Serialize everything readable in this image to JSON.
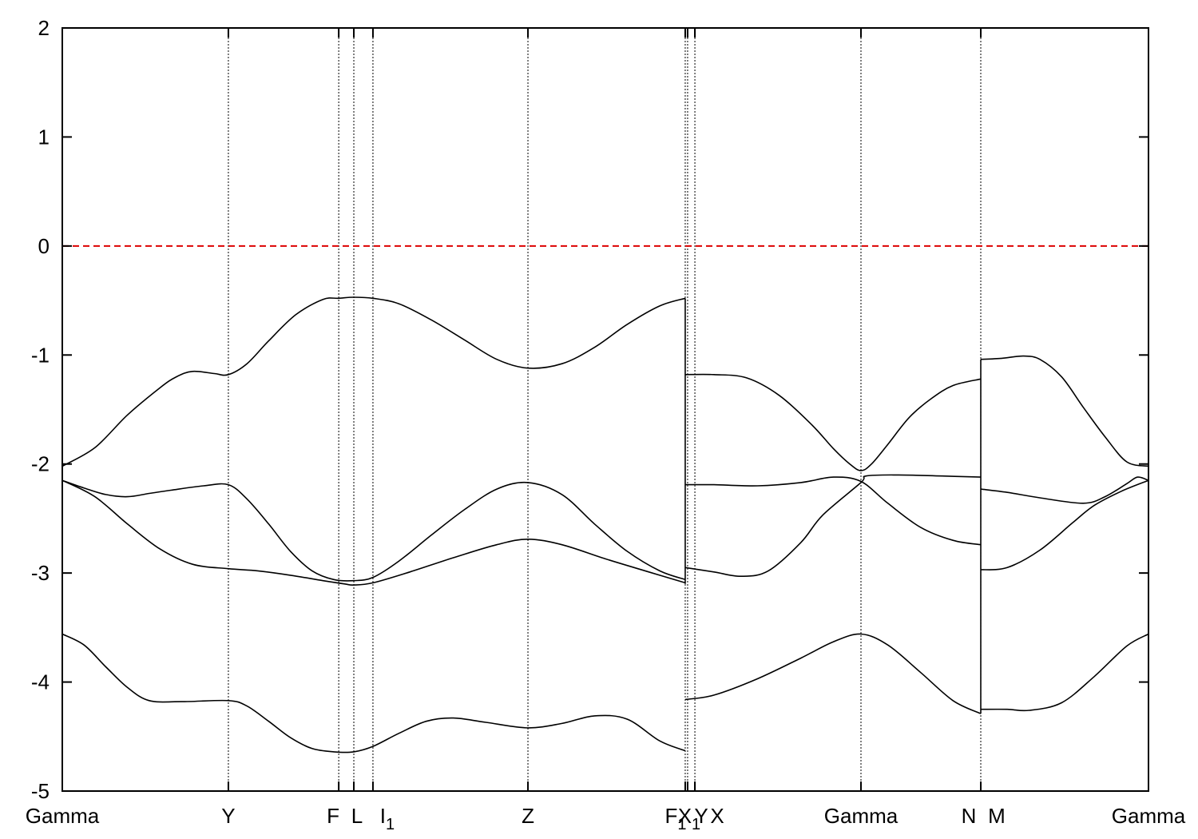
{
  "chart_data": {
    "type": "line",
    "title": "",
    "xlabel": "",
    "ylabel": "",
    "ylim": [
      -5,
      2
    ],
    "xlim": [
      0,
      1
    ],
    "grid": false,
    "legend": "none",
    "yticks": [
      2,
      1,
      0,
      -1,
      -2,
      -3,
      -4,
      -5
    ],
    "ytick_labels": [
      "2",
      "1",
      "0",
      "-1",
      "-2",
      "-3",
      "-4",
      "-5"
    ],
    "kpoints": [
      {
        "x": 0.0,
        "label": "Gamma"
      },
      {
        "x": 0.1529,
        "label": "Y"
      },
      {
        "x": 0.2545,
        "label": "F"
      },
      {
        "x": 0.2684,
        "label": "L"
      },
      {
        "x": 0.286,
        "label": "I",
        "sub": "1"
      },
      {
        "x": 0.4287,
        "label": "Z"
      },
      {
        "x": 0.5735,
        "label": "F",
        "sub": "1"
      },
      {
        "x": 0.5757,
        "label": "X",
        "sub": "1"
      },
      {
        "x": 0.5824,
        "label": "Y"
      },
      {
        "x": 0.5824,
        "label": "X"
      },
      {
        "x": 0.7353,
        "label": "Gamma"
      },
      {
        "x": 0.8456,
        "label": "N"
      },
      {
        "x": 0.8456,
        "label": "M"
      },
      {
        "x": 1.0,
        "label": "Gamma"
      }
    ],
    "kpoint_lines_x": [
      0.1529,
      0.2545,
      0.2684,
      0.286,
      0.4287,
      0.5735,
      0.5757,
      0.5824,
      0.7353,
      0.8456
    ],
    "fermi_level": {
      "y": 0,
      "color": "#dd0000",
      "style": "dashed"
    },
    "band_color": "#000000",
    "bands": [
      {
        "points": [
          [
            0,
            -2.02
          ],
          [
            0.03,
            -1.85
          ],
          [
            0.06,
            -1.55
          ],
          [
            0.09,
            -1.3
          ],
          [
            0.105,
            -1.2
          ],
          [
            0.12,
            -1.15
          ],
          [
            0.14,
            -1.17
          ],
          [
            0.1529,
            -1.18
          ],
          [
            0.17,
            -1.08
          ],
          [
            0.19,
            -0.87
          ],
          [
            0.215,
            -0.63
          ],
          [
            0.24,
            -0.49
          ],
          [
            0.2545,
            -0.48
          ],
          [
            0.2684,
            -0.47
          ],
          [
            0.286,
            -0.48
          ],
          [
            0.31,
            -0.53
          ],
          [
            0.34,
            -0.68
          ],
          [
            0.37,
            -0.86
          ],
          [
            0.4,
            -1.04
          ],
          [
            0.4287,
            -1.12
          ],
          [
            0.46,
            -1.08
          ],
          [
            0.49,
            -0.93
          ],
          [
            0.52,
            -0.72
          ],
          [
            0.55,
            -0.55
          ],
          [
            0.5735,
            -0.48
          ]
        ]
      },
      {
        "points": [
          [
            0,
            -2.15
          ],
          [
            0.02,
            -2.22
          ],
          [
            0.04,
            -2.28
          ],
          [
            0.06,
            -2.3
          ],
          [
            0.08,
            -2.27
          ],
          [
            0.1,
            -2.24
          ],
          [
            0.13,
            -2.2
          ],
          [
            0.1529,
            -2.19
          ],
          [
            0.17,
            -2.32
          ],
          [
            0.19,
            -2.55
          ],
          [
            0.21,
            -2.8
          ],
          [
            0.23,
            -2.98
          ],
          [
            0.25,
            -3.06
          ],
          [
            0.2684,
            -3.07
          ],
          [
            0.286,
            -3.04
          ],
          [
            0.31,
            -2.89
          ],
          [
            0.34,
            -2.65
          ],
          [
            0.37,
            -2.42
          ],
          [
            0.4,
            -2.23
          ],
          [
            0.4287,
            -2.17
          ],
          [
            0.46,
            -2.28
          ],
          [
            0.49,
            -2.55
          ],
          [
            0.52,
            -2.8
          ],
          [
            0.55,
            -2.98
          ],
          [
            0.5735,
            -3.06
          ]
        ]
      },
      {
        "points": [
          [
            0,
            -2.15
          ],
          [
            0.03,
            -2.3
          ],
          [
            0.06,
            -2.55
          ],
          [
            0.09,
            -2.78
          ],
          [
            0.12,
            -2.92
          ],
          [
            0.1529,
            -2.96
          ],
          [
            0.18,
            -2.98
          ],
          [
            0.21,
            -3.02
          ],
          [
            0.24,
            -3.07
          ],
          [
            0.26,
            -3.1
          ],
          [
            0.2684,
            -3.11
          ],
          [
            0.286,
            -3.09
          ],
          [
            0.32,
            -2.99
          ],
          [
            0.36,
            -2.86
          ],
          [
            0.4,
            -2.74
          ],
          [
            0.4287,
            -2.69
          ],
          [
            0.46,
            -2.74
          ],
          [
            0.5,
            -2.87
          ],
          [
            0.54,
            -2.99
          ],
          [
            0.5735,
            -3.09
          ]
        ]
      },
      {
        "points": [
          [
            0,
            -3.56
          ],
          [
            0.02,
            -3.66
          ],
          [
            0.04,
            -3.86
          ],
          [
            0.06,
            -4.05
          ],
          [
            0.08,
            -4.17
          ],
          [
            0.11,
            -4.18
          ],
          [
            0.1529,
            -4.17
          ],
          [
            0.17,
            -4.22
          ],
          [
            0.19,
            -4.36
          ],
          [
            0.21,
            -4.51
          ],
          [
            0.23,
            -4.61
          ],
          [
            0.25,
            -4.64
          ],
          [
            0.2684,
            -4.64
          ],
          [
            0.286,
            -4.59
          ],
          [
            0.31,
            -4.47
          ],
          [
            0.335,
            -4.36
          ],
          [
            0.36,
            -4.33
          ],
          [
            0.39,
            -4.37
          ],
          [
            0.4287,
            -4.42
          ],
          [
            0.46,
            -4.38
          ],
          [
            0.49,
            -4.31
          ],
          [
            0.52,
            -4.34
          ],
          [
            0.55,
            -4.54
          ],
          [
            0.5735,
            -4.63
          ]
        ]
      },
      {
        "points": [
          [
            0.5735,
            -1.18
          ],
          [
            0.6,
            -1.18
          ],
          [
            0.63,
            -1.21
          ],
          [
            0.66,
            -1.37
          ],
          [
            0.69,
            -1.64
          ],
          [
            0.71,
            -1.86
          ],
          [
            0.725,
            -2.0
          ],
          [
            0.7353,
            -2.06
          ],
          [
            0.745,
            -2.0
          ],
          [
            0.76,
            -1.82
          ],
          [
            0.78,
            -1.57
          ],
          [
            0.8,
            -1.4
          ],
          [
            0.82,
            -1.28
          ],
          [
            0.8456,
            -1.22
          ]
        ]
      },
      {
        "points": [
          [
            0.5735,
            -2.19
          ],
          [
            0.6,
            -2.19
          ],
          [
            0.64,
            -2.2
          ],
          [
            0.68,
            -2.17
          ],
          [
            0.71,
            -2.12
          ],
          [
            0.7353,
            -2.16
          ],
          [
            0.76,
            -2.36
          ],
          [
            0.79,
            -2.58
          ],
          [
            0.82,
            -2.7
          ],
          [
            0.8456,
            -2.74
          ]
        ]
      },
      {
        "points": [
          [
            0.5735,
            -2.95
          ],
          [
            0.6,
            -2.99
          ],
          [
            0.625,
            -3.03
          ],
          [
            0.65,
            -2.98
          ],
          [
            0.68,
            -2.72
          ],
          [
            0.7,
            -2.47
          ],
          [
            0.7353,
            -2.17
          ],
          [
            0.74,
            -2.11
          ],
          [
            0.77,
            -2.1
          ],
          [
            0.81,
            -2.11
          ],
          [
            0.8456,
            -2.12
          ]
        ]
      },
      {
        "points": [
          [
            0.5735,
            -4.16
          ],
          [
            0.6,
            -4.12
          ],
          [
            0.64,
            -3.97
          ],
          [
            0.68,
            -3.78
          ],
          [
            0.71,
            -3.63
          ],
          [
            0.7353,
            -3.56
          ],
          [
            0.76,
            -3.66
          ],
          [
            0.79,
            -3.91
          ],
          [
            0.82,
            -4.17
          ],
          [
            0.8456,
            -4.29
          ]
        ]
      },
      {
        "points": [
          [
            0.8456,
            -1.04
          ],
          [
            0.865,
            -1.03
          ],
          [
            0.885,
            -1.01
          ],
          [
            0.9,
            -1.04
          ],
          [
            0.92,
            -1.2
          ],
          [
            0.94,
            -1.48
          ],
          [
            0.96,
            -1.75
          ],
          [
            0.98,
            -1.98
          ],
          [
            1.0,
            -2.02
          ]
        ]
      },
      {
        "points": [
          [
            0.8456,
            -2.23
          ],
          [
            0.87,
            -2.26
          ],
          [
            0.9,
            -2.31
          ],
          [
            0.94,
            -2.36
          ],
          [
            0.96,
            -2.3
          ],
          [
            0.98,
            -2.18
          ],
          [
            0.99,
            -2.12
          ],
          [
            1.0,
            -2.15
          ]
        ]
      },
      {
        "points": [
          [
            0.8456,
            -2.97
          ],
          [
            0.87,
            -2.95
          ],
          [
            0.9,
            -2.79
          ],
          [
            0.93,
            -2.54
          ],
          [
            0.95,
            -2.38
          ],
          [
            0.975,
            -2.25
          ],
          [
            1.0,
            -2.15
          ]
        ]
      },
      {
        "points": [
          [
            0.8456,
            -4.25
          ],
          [
            0.87,
            -4.25
          ],
          [
            0.89,
            -4.26
          ],
          [
            0.92,
            -4.19
          ],
          [
            0.95,
            -3.95
          ],
          [
            0.98,
            -3.67
          ],
          [
            1.0,
            -3.56
          ]
        ]
      }
    ]
  }
}
